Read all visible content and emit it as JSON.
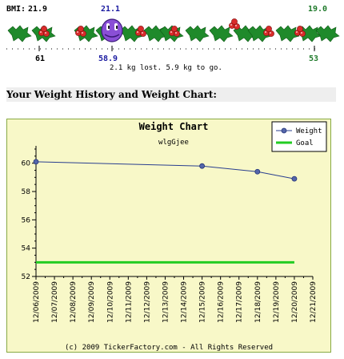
{
  "ticker": {
    "bmi_label": "BMI:",
    "bmi_start": "21.9",
    "bmi_current": "21.1",
    "bmi_goal": "19.0",
    "weight_start": "61",
    "weight_current": "58.9",
    "weight_goal": "53",
    "status": "2.1 kg lost. 5.9 kg to go.",
    "progress": 0.26,
    "colors": {
      "holly": "#1f8a2b",
      "berry": "#d92b2b",
      "current": "#1a1aa0",
      "goal": "#1f7a2b"
    }
  },
  "section": {
    "title": "Your Weight History and Weight Chart:"
  },
  "chart_data": {
    "type": "line",
    "title": "Weight Chart",
    "subtitle": "wlgGjee",
    "x": [
      "12/06/2009",
      "12/07/2009",
      "12/08/2009",
      "12/09/2009",
      "12/10/2009",
      "12/11/2009",
      "12/12/2009",
      "12/13/2009",
      "12/14/2009",
      "12/15/2009",
      "12/16/2009",
      "12/17/2009",
      "12/18/2009",
      "12/19/2009",
      "12/20/2009",
      "12/21/2009"
    ],
    "series": [
      {
        "name": "Weight",
        "x": [
          "12/06/2009",
          "12/15/2009",
          "12/18/2009",
          "12/20/2009"
        ],
        "values": [
          60.1,
          59.8,
          59.4,
          58.9
        ],
        "color": "#2a3f8f"
      },
      {
        "name": "Goal",
        "x": [
          "12/06/2009",
          "12/20/2009"
        ],
        "values": [
          53,
          53
        ],
        "color": "#22cc22"
      }
    ],
    "yticks": [
      "52",
      "54",
      "56",
      "58",
      "60"
    ],
    "ylim": [
      52,
      61
    ],
    "legend": "top-right",
    "grid": false,
    "background": "#f8f8c8",
    "frame_color": "#88aa44",
    "footer": "(c) 2009 TickerFactory.com - All Rights Reserved"
  }
}
